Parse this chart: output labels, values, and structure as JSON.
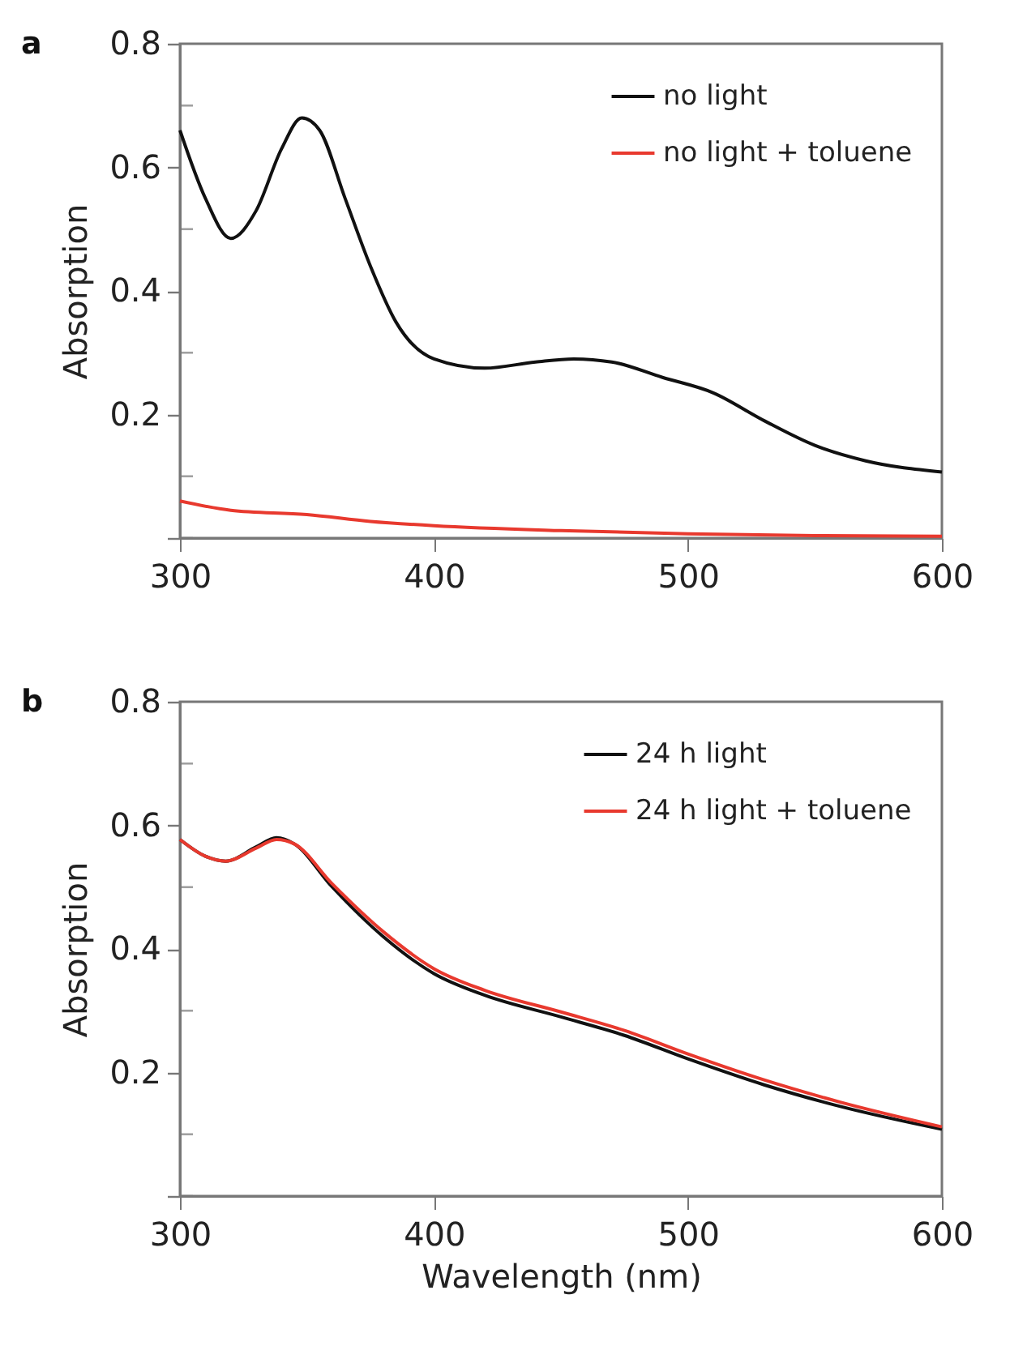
{
  "chart_data": [
    {
      "type": "line",
      "title": "a",
      "ylabel": "Absorption",
      "xlim": [
        300,
        600
      ],
      "xticks": [
        300,
        400,
        500,
        600
      ],
      "ylim": [
        0,
        0.8
      ],
      "yticks": [
        {
          "value": 0,
          "label": null
        },
        {
          "value": 0.1,
          "label": null
        },
        0.2,
        {
          "value": 0.3,
          "label": null
        },
        0.4,
        {
          "value": 0.5,
          "label": null
        },
        0.6,
        {
          "value": 0.7,
          "label": null
        },
        0.8
      ],
      "grid": false,
      "legend": "top right",
      "line_style": "solid",
      "series": [
        {
          "name": "no light",
          "color": "#111111",
          "x": [
            300,
            310,
            320,
            330,
            340,
            348,
            355,
            365,
            375,
            385,
            400,
            420,
            440,
            455,
            470,
            490,
            510,
            530,
            550,
            570,
            600
          ],
          "values": [
            0.66,
            0.55,
            0.485,
            0.53,
            0.63,
            0.68,
            0.66,
            0.55,
            0.44,
            0.35,
            0.29,
            0.275,
            0.285,
            0.29,
            0.285,
            0.26,
            0.235,
            0.19,
            0.15,
            0.125,
            0.107
          ]
        },
        {
          "name": "no light + toluene",
          "color": "#e8392e",
          "x": [
            300,
            320,
            350,
            375,
            400,
            450,
            500,
            550,
            600
          ],
          "values": [
            0.06,
            0.045,
            0.038,
            0.027,
            0.02,
            0.012,
            0.007,
            0.004,
            0.003
          ]
        }
      ]
    },
    {
      "type": "line",
      "title": "b",
      "xlabel": "Wavelength (nm)",
      "ylabel": "Absorption",
      "xlim": [
        300,
        600
      ],
      "xticks": [
        300,
        400,
        500,
        600
      ],
      "ylim": [
        0,
        0.8
      ],
      "yticks": [
        {
          "value": 0,
          "label": null
        },
        {
          "value": 0.1,
          "label": null
        },
        0.2,
        {
          "value": 0.3,
          "label": null
        },
        0.4,
        {
          "value": 0.5,
          "label": null
        },
        0.6,
        {
          "value": 0.7,
          "label": null
        },
        0.8
      ],
      "grid": false,
      "legend": "top right",
      "line_style": "solid",
      "series": [
        {
          "name": "24 h light",
          "color": "#111111",
          "x": [
            300,
            310,
            318,
            330,
            338,
            345,
            360,
            380,
            400,
            420,
            450,
            475,
            500,
            530,
            560,
            600
          ],
          "values": [
            0.577,
            0.55,
            0.542,
            0.565,
            0.58,
            0.57,
            0.5,
            0.42,
            0.36,
            0.325,
            0.29,
            0.26,
            0.222,
            0.18,
            0.145,
            0.108
          ]
        },
        {
          "name": "24 h light + toluene",
          "color": "#e8392e",
          "x": [
            300,
            310,
            318,
            330,
            338,
            345,
            360,
            380,
            400,
            420,
            450,
            475,
            500,
            530,
            560,
            600
          ],
          "values": [
            0.577,
            0.55,
            0.542,
            0.563,
            0.577,
            0.57,
            0.505,
            0.428,
            0.368,
            0.333,
            0.298,
            0.268,
            0.23,
            0.188,
            0.152,
            0.112
          ]
        }
      ]
    }
  ]
}
